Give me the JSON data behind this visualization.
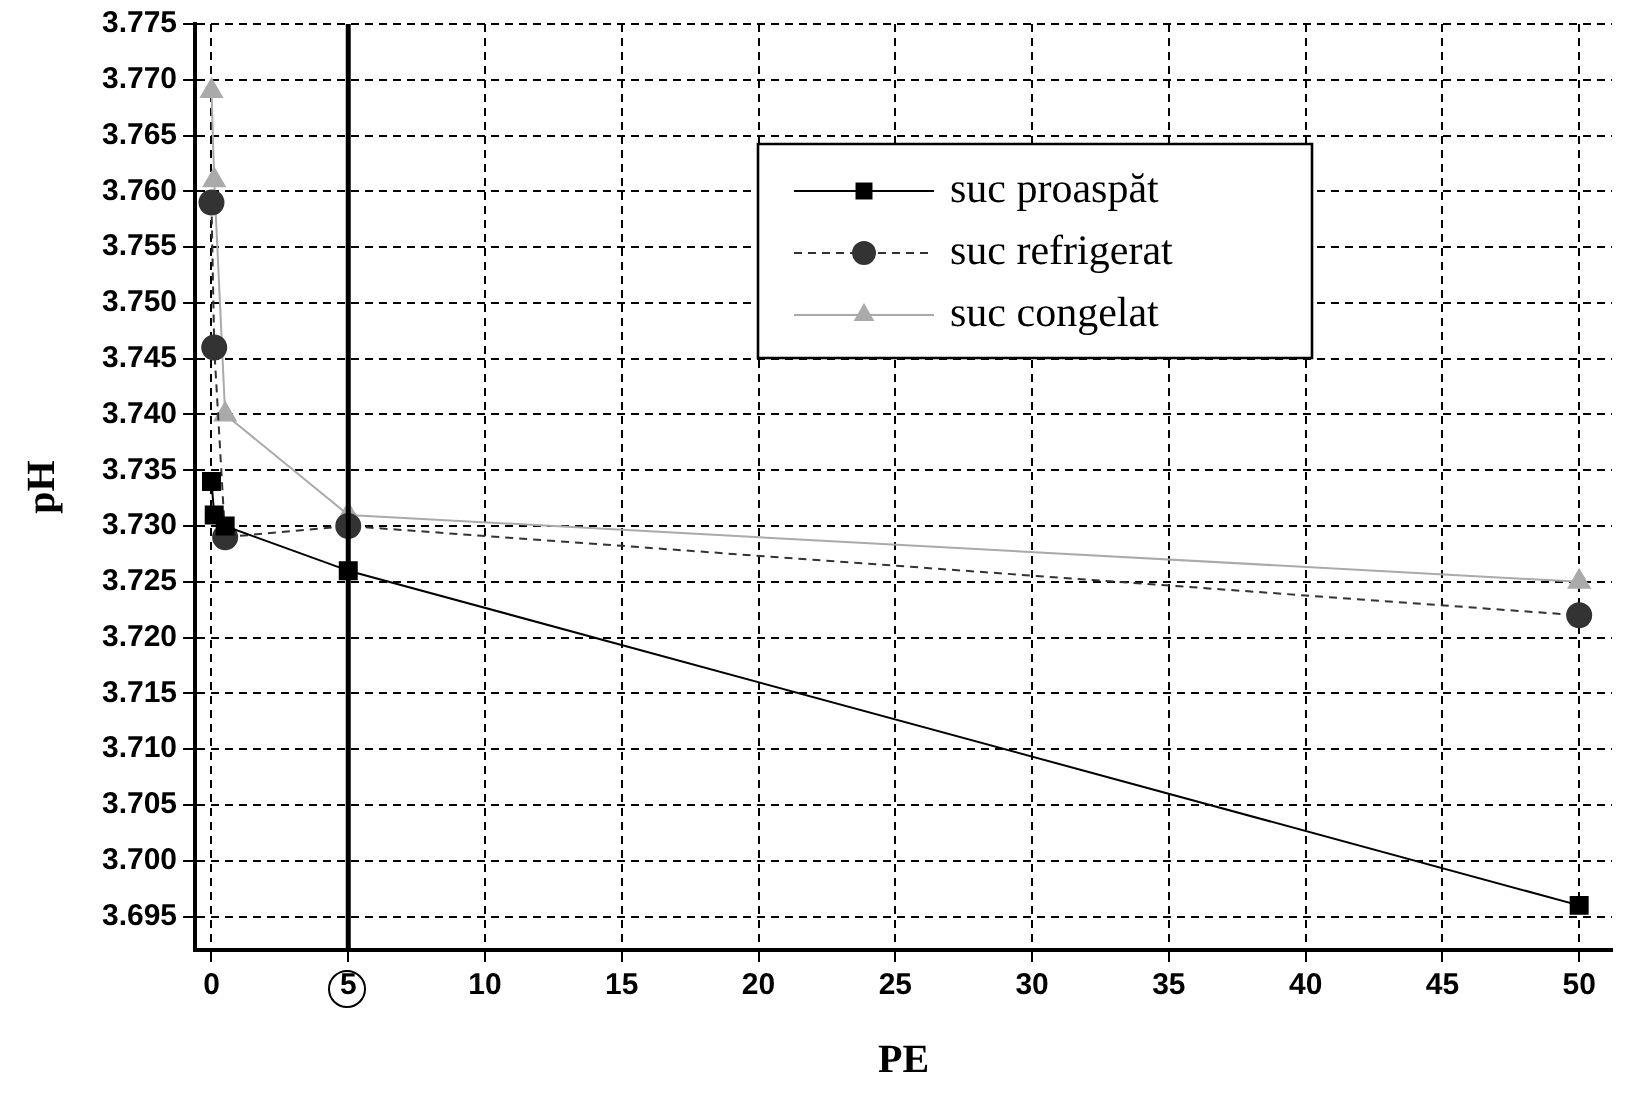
{
  "chart_data": {
    "type": "line",
    "xlabel": "PE",
    "ylabel": "pH",
    "x": [
      0,
      0.1,
      0.5,
      5,
      50
    ],
    "series": [
      {
        "name": "suc proaspăt",
        "color": "#000000",
        "values": [
          3.734,
          3.731,
          3.73,
          3.726,
          3.696
        ],
        "marker": "square",
        "line_style": "solid"
      },
      {
        "name": "suc refrigerat",
        "color": "#333333",
        "values": [
          3.759,
          3.746,
          3.729,
          3.73,
          3.722
        ],
        "marker": "circle",
        "line_style": "dashed"
      },
      {
        "name": "suc congelat",
        "color": "#aaaaaa",
        "values": [
          3.769,
          3.761,
          3.74,
          3.731,
          3.725
        ],
        "marker": "triangle",
        "line_style": "solid"
      }
    ],
    "xlim": [
      -0.6,
      51.2
    ],
    "xticks": [
      0,
      5,
      10,
      15,
      20,
      25,
      30,
      35,
      40,
      45,
      50
    ],
    "ylim": [
      3.692,
      3.775
    ],
    "yticks": [
      3.695,
      {
        "value": 3.7,
        "label": "3.700"
      },
      3.705,
      {
        "value": 3.71,
        "label": "3.710"
      },
      3.715,
      {
        "value": 3.72,
        "label": "3.720"
      },
      3.725,
      {
        "value": 3.73,
        "label": "3.730"
      },
      3.735,
      {
        "value": 3.74,
        "label": "3.740"
      },
      3.745,
      {
        "value": 3.75,
        "label": "3.750"
      },
      3.755,
      {
        "value": 3.76,
        "label": "3.760"
      },
      3.765,
      {
        "value": 3.77,
        "label": "3.770"
      },
      3.775
    ],
    "ref_lines": [
      {
        "axis": "x",
        "value": 5,
        "color": "#000000"
      }
    ],
    "grid": true,
    "legend": "top right"
  }
}
